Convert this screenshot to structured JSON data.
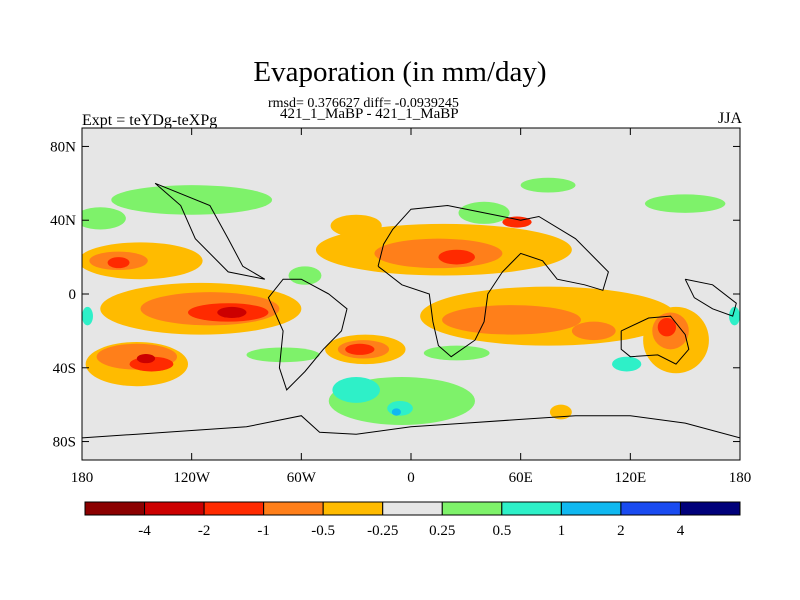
{
  "header": {
    "title": "Evaporation (in mm/day)",
    "stats": "rmsd= 0.376627 diff= -0.0939245",
    "subtitle": "421_1_MaBP - 421_1_MaBP",
    "experiment": "Expt = teYDg-teXPg",
    "season": "JJA"
  },
  "map": {
    "lon_range": [
      -180,
      180
    ],
    "lat_range": [
      -90,
      90
    ],
    "lat_ticks": [
      {
        "v": 80,
        "label": "80N"
      },
      {
        "v": 40,
        "label": "40N"
      },
      {
        "v": 0,
        "label": "0"
      },
      {
        "v": -40,
        "label": "40S"
      },
      {
        "v": -80,
        "label": "80S"
      }
    ],
    "lon_ticks": [
      {
        "v": -180,
        "label": "180"
      },
      {
        "v": -120,
        "label": "120W"
      },
      {
        "v": -60,
        "label": "60W"
      },
      {
        "v": 0,
        "label": "0"
      },
      {
        "v": 60,
        "label": "60E"
      },
      {
        "v": 120,
        "label": "120E"
      },
      {
        "v": 180,
        "label": "180"
      }
    ],
    "background_color": "#e6e6e6"
  },
  "colorbar": {
    "colors": [
      "#8b0000",
      "#cc0000",
      "#ff2a00",
      "#ff7f1a",
      "#ffbb00",
      "#e6e6e6",
      "#7ef26a",
      "#2ef0c8",
      "#10b8f0",
      "#1a4bf0",
      "#00007a"
    ],
    "labels": [
      "-4",
      "-2",
      "-1",
      "-0.5",
      "-0.25",
      "0.25",
      "0.5",
      "1",
      "2",
      "4"
    ]
  },
  "fields": [
    {
      "level": 0.25,
      "lon": 75,
      "lat": 59,
      "rx": 15,
      "ry": 4
    },
    {
      "level": 0.25,
      "lon": -120,
      "lat": 51,
      "rx": 44,
      "ry": 8
    },
    {
      "level": 0.25,
      "lon": -170,
      "lat": 41,
      "rx": 14,
      "ry": 6
    },
    {
      "level": 0.25,
      "lon": 40,
      "lat": 44,
      "rx": 14,
      "ry": 6
    },
    {
      "level": 0.25,
      "lon": 150,
      "lat": 49,
      "rx": 22,
      "ry": 5
    },
    {
      "level": 0.25,
      "lon": -70,
      "lat": -33,
      "rx": 20,
      "ry": 4
    },
    {
      "level": 0.25,
      "lon": -5,
      "lat": -58,
      "rx": 40,
      "ry": 13
    },
    {
      "level": 0.25,
      "lon": 25,
      "lat": -32,
      "rx": 18,
      "ry": 4
    },
    {
      "level": 0.25,
      "lon": -58,
      "lat": 10,
      "rx": 9,
      "ry": 5
    },
    {
      "level": 0.25,
      "lon": 95,
      "lat": -18,
      "rx": 10,
      "ry": 4
    },
    {
      "level": 0.5,
      "lon": -30,
      "lat": -52,
      "rx": 13,
      "ry": 7
    },
    {
      "level": 0.5,
      "lon": -6,
      "lat": -62,
      "rx": 7,
      "ry": 4
    },
    {
      "level": 0.5,
      "lon": 118,
      "lat": -38,
      "rx": 8,
      "ry": 4
    },
    {
      "level": 0.5,
      "lon": -177,
      "lat": -12,
      "rx": 3,
      "ry": 5
    },
    {
      "level": 0.5,
      "lon": 177,
      "lat": -12,
      "rx": 3,
      "ry": 5
    },
    {
      "level": 1,
      "lon": -8,
      "lat": -64,
      "rx": 2.5,
      "ry": 2
    },
    {
      "level": -0.25,
      "lon": -148,
      "lat": 18,
      "rx": 34,
      "ry": 10
    },
    {
      "level": -0.25,
      "lon": -115,
      "lat": -8,
      "rx": 55,
      "ry": 14
    },
    {
      "level": -0.25,
      "lon": -150,
      "lat": -38,
      "rx": 28,
      "ry": 12
    },
    {
      "level": -0.25,
      "lon": 18,
      "lat": 24,
      "rx": 70,
      "ry": 14
    },
    {
      "level": -0.25,
      "lon": 75,
      "lat": -12,
      "rx": 70,
      "ry": 16
    },
    {
      "level": -0.25,
      "lon": -25,
      "lat": -30,
      "rx": 22,
      "ry": 8
    },
    {
      "level": -0.25,
      "lon": 145,
      "lat": -25,
      "rx": 18,
      "ry": 18
    },
    {
      "level": -0.25,
      "lon": -30,
      "lat": 37,
      "rx": 14,
      "ry": 6
    },
    {
      "level": -0.25,
      "lon": 82,
      "lat": -64,
      "rx": 6,
      "ry": 4
    },
    {
      "level": -0.5,
      "lon": -160,
      "lat": 18,
      "rx": 16,
      "ry": 5
    },
    {
      "level": -0.5,
      "lon": -110,
      "lat": -8,
      "rx": 38,
      "ry": 9
    },
    {
      "level": -0.5,
      "lon": -150,
      "lat": -34,
      "rx": 22,
      "ry": 7
    },
    {
      "level": -0.5,
      "lon": 15,
      "lat": 22,
      "rx": 35,
      "ry": 8
    },
    {
      "level": -0.5,
      "lon": 55,
      "lat": -14,
      "rx": 38,
      "ry": 8
    },
    {
      "level": -0.5,
      "lon": -26,
      "lat": -30,
      "rx": 14,
      "ry": 5
    },
    {
      "level": -0.5,
      "lon": 142,
      "lat": -20,
      "rx": 10,
      "ry": 10
    },
    {
      "level": -0.5,
      "lon": 100,
      "lat": -20,
      "rx": 12,
      "ry": 5
    },
    {
      "level": -1,
      "lon": -100,
      "lat": -10,
      "rx": 22,
      "ry": 5
    },
    {
      "level": -1,
      "lon": -142,
      "lat": -38,
      "rx": 12,
      "ry": 4
    },
    {
      "level": -1,
      "lon": 58,
      "lat": 39,
      "rx": 8,
      "ry": 3
    },
    {
      "level": -1,
      "lon": -28,
      "lat": -30,
      "rx": 8,
      "ry": 3
    },
    {
      "level": -1,
      "lon": 140,
      "lat": -18,
      "rx": 5,
      "ry": 5
    },
    {
      "level": -1,
      "lon": 25,
      "lat": 20,
      "rx": 10,
      "ry": 4
    },
    {
      "level": -1,
      "lon": -160,
      "lat": 17,
      "rx": 6,
      "ry": 3
    },
    {
      "level": -2,
      "lon": -98,
      "lat": -10,
      "rx": 8,
      "ry": 3
    },
    {
      "level": -2,
      "lon": -145,
      "lat": -35,
      "rx": 5,
      "ry": 2.5
    }
  ],
  "coastlines": [
    {
      "name": "north-america",
      "points": [
        [
          -140,
          60
        ],
        [
          -110,
          48
        ],
        [
          -100,
          30
        ],
        [
          -92,
          15
        ],
        [
          -80,
          8
        ],
        [
          -100,
          12
        ],
        [
          -118,
          30
        ],
        [
          -126,
          48
        ],
        [
          -140,
          60
        ]
      ]
    },
    {
      "name": "south-america",
      "points": [
        [
          -45,
          0
        ],
        [
          -35,
          -8
        ],
        [
          -38,
          -20
        ],
        [
          -48,
          -30
        ],
        [
          -58,
          -42
        ],
        [
          -68,
          -52
        ],
        [
          -72,
          -40
        ],
        [
          -70,
          -20
        ],
        [
          -78,
          -2
        ],
        [
          -70,
          8
        ],
        [
          -60,
          8
        ],
        [
          -45,
          0
        ]
      ]
    },
    {
      "name": "africa-eurasia",
      "points": [
        [
          -18,
          15
        ],
        [
          -15,
          27
        ],
        [
          -10,
          35
        ],
        [
          0,
          46
        ],
        [
          20,
          48
        ],
        [
          35,
          45
        ],
        [
          50,
          42
        ],
        [
          60,
          40
        ],
        [
          70,
          42
        ],
        [
          90,
          30
        ],
        [
          100,
          20
        ],
        [
          108,
          12
        ],
        [
          105,
          2
        ],
        [
          95,
          5
        ],
        [
          80,
          8
        ],
        [
          72,
          18
        ],
        [
          60,
          22
        ],
        [
          50,
          12
        ],
        [
          42,
          0
        ],
        [
          40,
          -15
        ],
        [
          35,
          -25
        ],
        [
          22,
          -34
        ],
        [
          15,
          -28
        ],
        [
          12,
          -15
        ],
        [
          10,
          0
        ],
        [
          -5,
          5
        ],
        [
          -18,
          15
        ]
      ]
    },
    {
      "name": "australia",
      "points": [
        [
          115,
          -20
        ],
        [
          130,
          -13
        ],
        [
          142,
          -12
        ],
        [
          150,
          -22
        ],
        [
          152,
          -30
        ],
        [
          145,
          -38
        ],
        [
          135,
          -33
        ],
        [
          120,
          -34
        ],
        [
          115,
          -30
        ],
        [
          115,
          -20
        ]
      ]
    },
    {
      "name": "maritime-islands",
      "points": [
        [
          150,
          8
        ],
        [
          165,
          5
        ],
        [
          178,
          -5
        ],
        [
          176,
          -12
        ],
        [
          165,
          -8
        ],
        [
          155,
          -2
        ],
        [
          150,
          8
        ]
      ]
    },
    {
      "name": "antarctica",
      "points": [
        [
          -180,
          -78
        ],
        [
          -150,
          -76
        ],
        [
          -120,
          -74
        ],
        [
          -90,
          -72
        ],
        [
          -60,
          -66
        ],
        [
          -50,
          -75
        ],
        [
          -30,
          -76
        ],
        [
          0,
          -72
        ],
        [
          30,
          -70
        ],
        [
          60,
          -68
        ],
        [
          90,
          -66
        ],
        [
          120,
          -66
        ],
        [
          150,
          -70
        ],
        [
          180,
          -78
        ]
      ]
    }
  ]
}
